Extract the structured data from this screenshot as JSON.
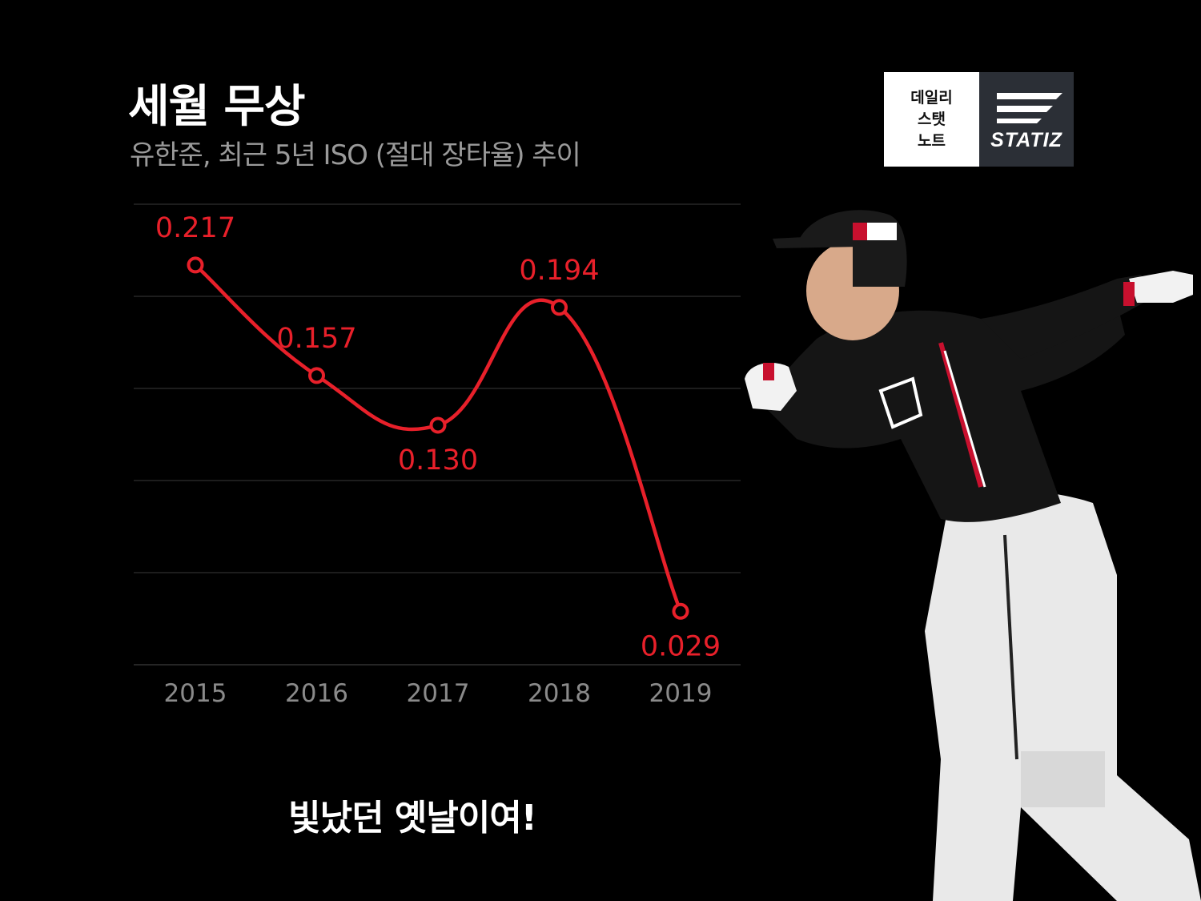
{
  "header": {
    "title": "세월 무상",
    "subtitle": "유한준, 최근 5년 ISO (절대 장타율) 추이"
  },
  "logo": {
    "left_lines": [
      "데일리",
      "스탯",
      "노트"
    ],
    "brand": "STATIZ"
  },
  "caption": "빛났던 옛날이여!",
  "colors": {
    "background": "#000000",
    "line": "#e8202a",
    "label": "#e8202a",
    "tick": "#8a8a8a",
    "grid": "#3a3a3a"
  },
  "chart_data": {
    "type": "line",
    "title": "세월 무상",
    "subtitle": "유한준, 최근 5년 ISO (절대 장타율) 추이",
    "categories": [
      "2015",
      "2016",
      "2017",
      "2018",
      "2019"
    ],
    "series": [
      {
        "values": [
          0.217,
          0.157,
          0.13,
          0.194,
          0.029
        ],
        "labels": [
          "0.217",
          "0.157",
          "0.130",
          "0.194",
          "0.029"
        ]
      }
    ],
    "ylim": [
      0,
      0.25
    ],
    "grid": true,
    "smooth": true,
    "legend": "none"
  }
}
